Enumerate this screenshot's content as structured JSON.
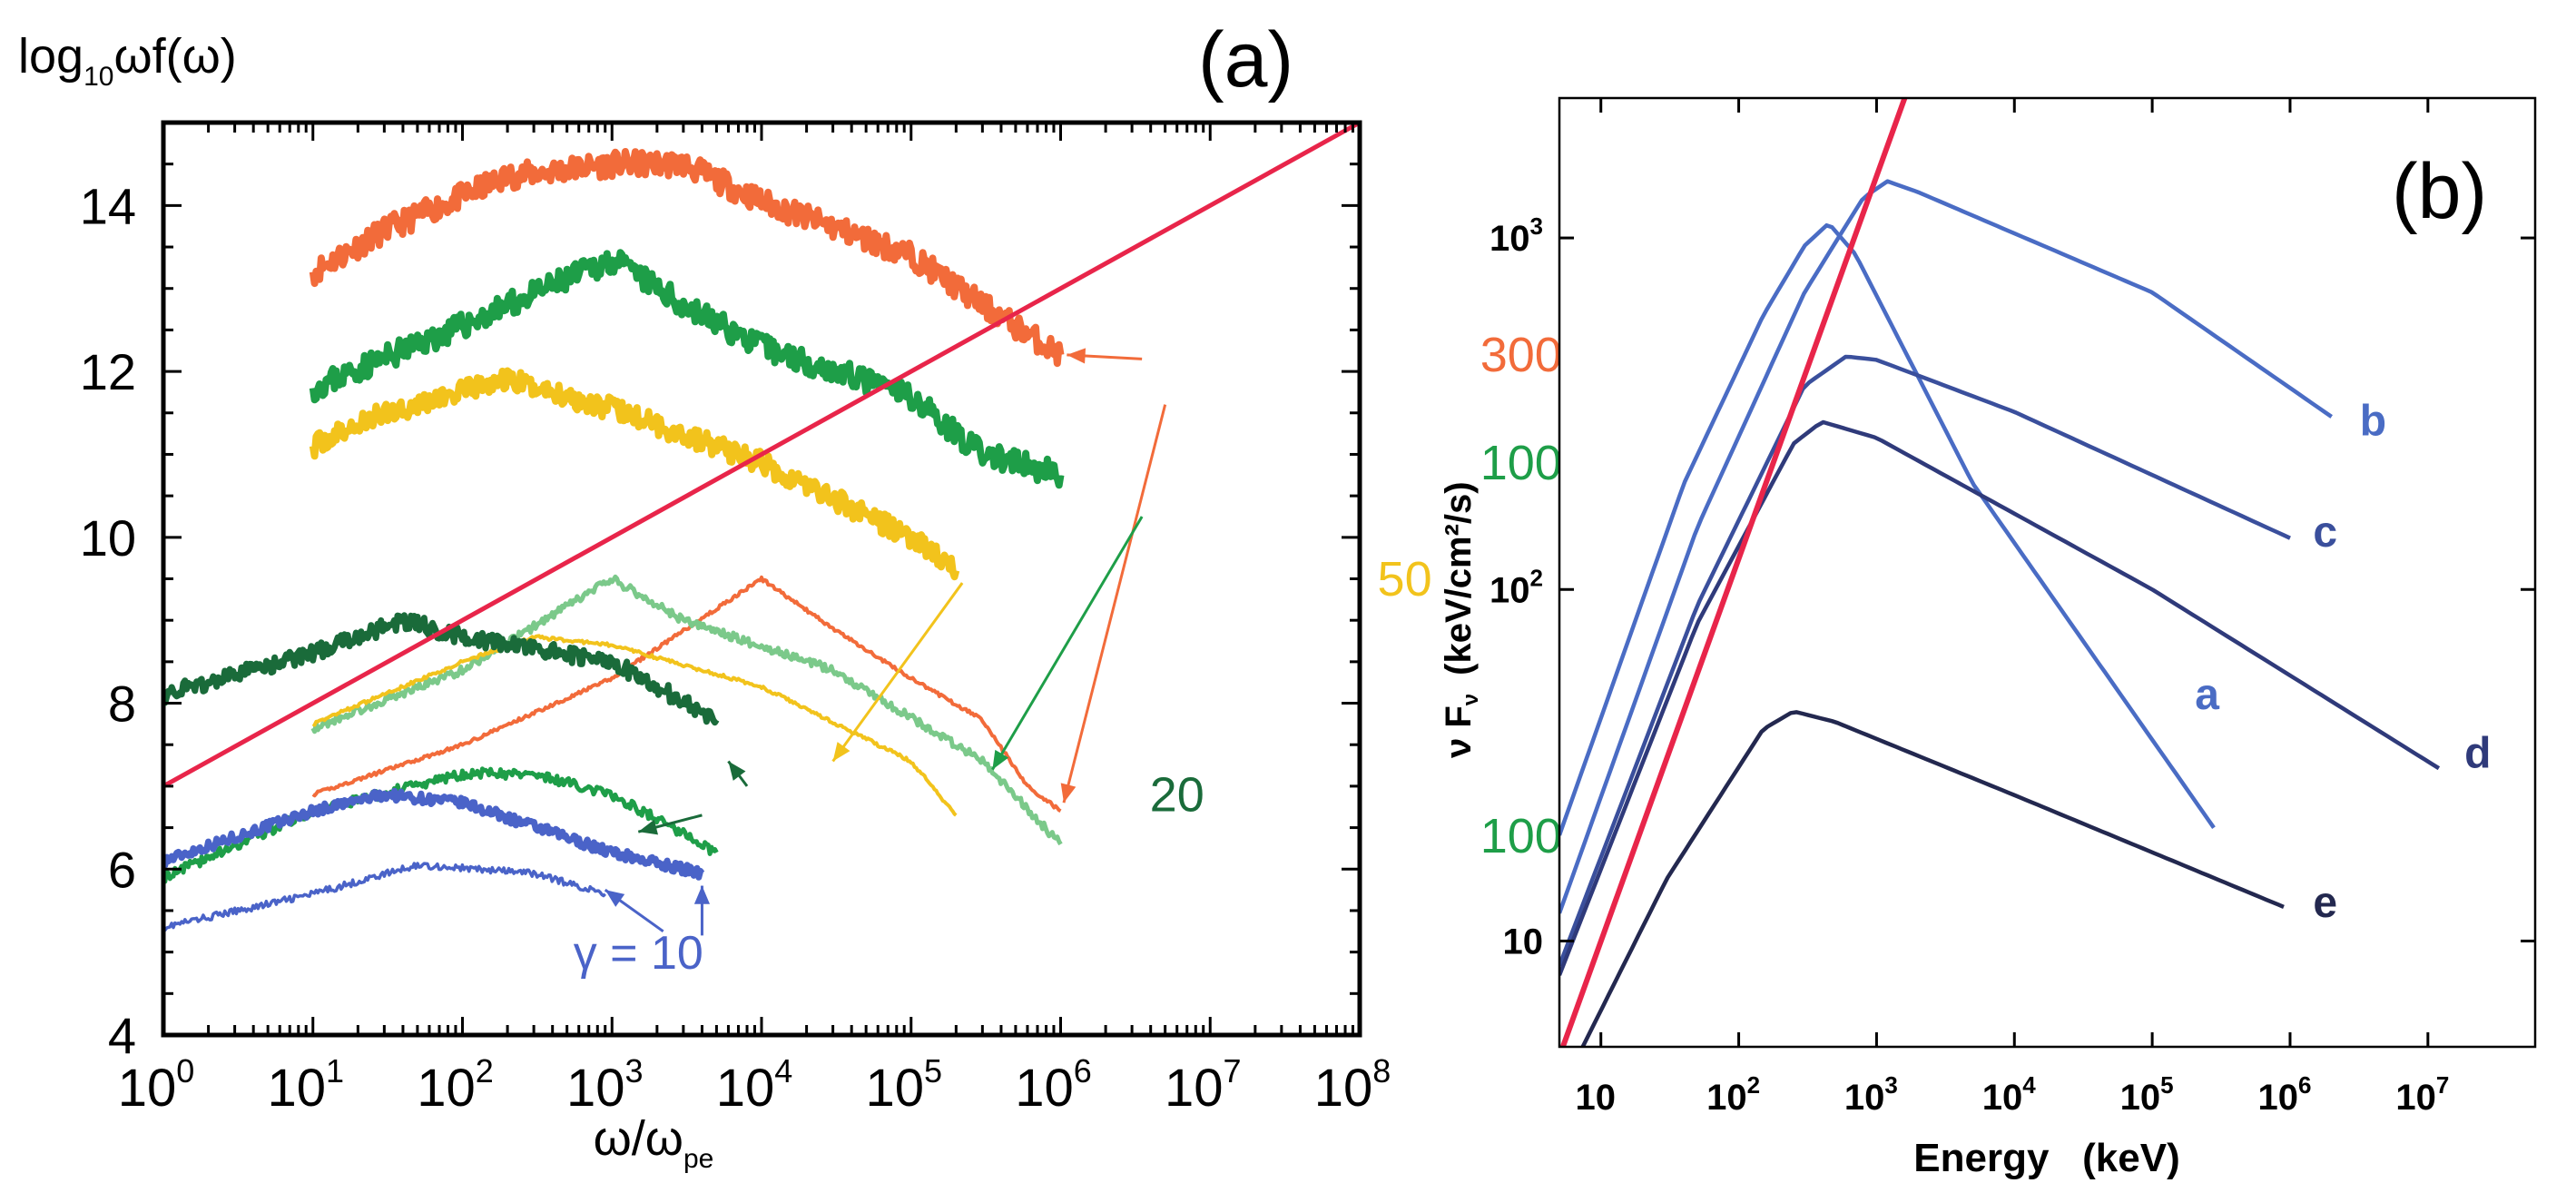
{
  "chart_data": [
    {
      "panel": "(a)",
      "type": "line",
      "ylabel_base": "log",
      "ylabel_sub": "10",
      "ylabel_rest": "ωf(ω)",
      "xlabel_base": "ω/ω",
      "xlabel_sub": "pe",
      "xscale": "log",
      "xlim": [
        1,
        100000000
      ],
      "ylim": [
        4,
        15
      ],
      "x_ticks": [
        {
          "base": "10",
          "exp": "0"
        },
        {
          "base": "10",
          "exp": "1"
        },
        {
          "base": "10",
          "exp": "2"
        },
        {
          "base": "10",
          "exp": "3"
        },
        {
          "base": "10",
          "exp": "4"
        },
        {
          "base": "10",
          "exp": "5"
        },
        {
          "base": "10",
          "exp": "6"
        },
        {
          "base": "10",
          "exp": "7"
        },
        {
          "base": "10",
          "exp": "8"
        }
      ],
      "y_ticks": [
        "4",
        "6",
        "8",
        "10",
        "12",
        "14"
      ],
      "y_tick_values": [
        4,
        6,
        8,
        10,
        12,
        14
      ],
      "reference_line": {
        "name": "red-reference-line",
        "color": "#e8254a",
        "points": [
          [
            1,
            7.0
          ],
          [
            100000000,
            15.0
          ]
        ]
      },
      "series": [
        {
          "name": "gamma-300-upper",
          "color": "#f26b3a",
          "width": 8,
          "noise": 0.15,
          "seed": 11,
          "points": [
            [
              10,
              13.2
            ],
            [
              30,
              13.7
            ],
            [
              200,
              14.35
            ],
            [
              1000,
              14.5
            ],
            [
              3000,
              14.5
            ],
            [
              10000,
              14.05
            ],
            [
              100000,
              13.4
            ],
            [
              300000,
              12.8
            ],
            [
              1000000,
              12.2
            ]
          ]
        },
        {
          "name": "gamma-100-upper",
          "color": "#1e9e48",
          "width": 8,
          "noise": 0.15,
          "seed": 23,
          "points": [
            [
              10,
              11.8
            ],
            [
              100,
              12.55
            ],
            [
              1000,
              13.35
            ],
            [
              3000,
              12.8
            ],
            [
              10000,
              12.3
            ],
            [
              100000,
              11.7
            ],
            [
              300000,
              11.0
            ],
            [
              1000000,
              10.75
            ]
          ]
        },
        {
          "name": "gamma-50-upper",
          "color": "#f2c31c",
          "width": 8,
          "noise": 0.13,
          "seed": 37,
          "points": [
            [
              10,
              11.1
            ],
            [
              30,
              11.5
            ],
            [
              200,
              11.9
            ],
            [
              1000,
              11.55
            ],
            [
              10000,
              10.9
            ],
            [
              100000,
              10.0
            ],
            [
              200000,
              9.6
            ]
          ]
        },
        {
          "name": "gamma-300-lower",
          "color": "#f26b3a",
          "width": 4,
          "noise": 0.02,
          "seed": 41,
          "points": [
            [
              10,
              6.9
            ],
            [
              100,
              7.5
            ],
            [
              1000,
              8.3
            ],
            [
              10000,
              9.5
            ],
            [
              30000,
              8.9
            ],
            [
              100000,
              8.3
            ],
            [
              300000,
              7.8
            ],
            [
              600000,
              7.0
            ],
            [
              1000000,
              6.7
            ]
          ]
        },
        {
          "name": "gamma-100-lower-light",
          "color": "#7bc98a",
          "width": 5,
          "noise": 0.05,
          "seed": 53,
          "points": [
            [
              10,
              7.7
            ],
            [
              100,
              8.4
            ],
            [
              1000,
              9.5
            ],
            [
              3000,
              9.0
            ],
            [
              30000,
              8.4
            ],
            [
              300000,
              7.3
            ],
            [
              1000000,
              6.3
            ]
          ]
        },
        {
          "name": "gamma-50-lower",
          "color": "#f2c31c",
          "width": 4,
          "noise": 0.02,
          "seed": 67,
          "points": [
            [
              10,
              7.75
            ],
            [
              100,
              8.5
            ],
            [
              300,
              8.8
            ],
            [
              1000,
              8.7
            ],
            [
              10000,
              8.2
            ],
            [
              100000,
              7.3
            ],
            [
              200000,
              6.65
            ]
          ]
        },
        {
          "name": "gamma-20-dark",
          "color": "#1a6b3a",
          "width": 7,
          "noise": 0.1,
          "seed": 71,
          "points": [
            [
              1,
              8.1
            ],
            [
              10,
              8.6
            ],
            [
              40,
              9.0
            ],
            [
              100,
              8.8
            ],
            [
              1000,
              8.5
            ],
            [
              5000,
              7.8
            ]
          ]
        },
        {
          "name": "gamma-20-lower",
          "color": "#1e9e48",
          "width": 5,
          "noise": 0.06,
          "seed": 83,
          "points": [
            [
              1,
              5.9
            ],
            [
              10,
              6.7
            ],
            [
              100,
              7.15
            ],
            [
              300,
              7.15
            ],
            [
              1000,
              6.9
            ],
            [
              5000,
              6.2
            ]
          ]
        },
        {
          "name": "gamma-10-thick",
          "color": "#4a63c8",
          "width": 7,
          "noise": 0.06,
          "seed": 97,
          "points": [
            [
              1,
              6.1
            ],
            [
              10,
              6.7
            ],
            [
              30,
              6.9
            ],
            [
              100,
              6.8
            ],
            [
              1000,
              6.2
            ],
            [
              4000,
              5.95
            ]
          ]
        },
        {
          "name": "gamma-10-thin",
          "color": "#4a63c8",
          "width": 3.5,
          "noise": 0.04,
          "seed": 101,
          "points": [
            [
              1,
              5.3
            ],
            [
              10,
              5.7
            ],
            [
              50,
              6.05
            ],
            [
              300,
              5.95
            ],
            [
              900,
              5.7
            ]
          ]
        }
      ],
      "annotations": [
        {
          "text": "300",
          "color": "#f26b3a",
          "label_xy": [
            1200000000,
            12.0
          ],
          "arrows": [
            [
              [
                3500000,
                12.15
              ],
              [
                1100000,
                12.2
              ]
            ],
            [
              [
                5000000,
                11.6
              ],
              [
                1050000,
                6.8
              ]
            ]
          ]
        },
        {
          "text": "100",
          "color": "#1e9e48",
          "label_xy": [
            1200000000,
            10.7
          ],
          "arrows": [
            [
              [
                3500000,
                10.25
              ],
              [
                350000,
                7.2
              ]
            ]
          ]
        },
        {
          "text": "100",
          "color": "#1e9e48",
          "label_xy": [
            1200000000,
            6.2
          ],
          "arrows": []
        },
        {
          "text": "50",
          "color": "#f2c31c",
          "label_xy": [
            200000000,
            9.3
          ],
          "arrows": [
            [
              [
                220000,
                9.45
              ],
              [
                30000,
                7.3
              ]
            ]
          ]
        },
        {
          "text": "20",
          "color": "#1a6b3a",
          "label_xy": [
            6000000,
            6.7
          ],
          "arrows": [
            [
              [
                8000,
                7.0
              ],
              [
                6000,
                7.3
              ]
            ],
            [
              [
                4000,
                6.65
              ],
              [
                1500,
                6.45
              ]
            ]
          ]
        }
      ],
      "gamma_label": "γ = 10",
      "gamma_color": "#4a63c8",
      "gamma_label_xy": [
        1500,
        4.8
      ],
      "gamma_arrows": [
        [
          [
            2200,
            5.25
          ],
          [
            900,
            5.75
          ]
        ],
        [
          [
            4000,
            5.2
          ],
          [
            4000,
            5.8
          ]
        ]
      ]
    },
    {
      "panel": "(b)",
      "type": "line",
      "xlabel": "Energy   (keV)",
      "ylabel_nu": "ν F",
      "ylabel_sub": "ν",
      "ylabel_units": "(keV/cm²/s)",
      "xscale": "log",
      "yscale": "log",
      "xlim": [
        5,
        60000000
      ],
      "ylim": [
        5,
        2500
      ],
      "x_ticks": [
        {
          "base": "10",
          "exp": ""
        },
        {
          "base": "10",
          "exp": "2"
        },
        {
          "base": "10",
          "exp": "3"
        },
        {
          "base": "10",
          "exp": "4"
        },
        {
          "base": "10",
          "exp": "5"
        },
        {
          "base": "10",
          "exp": "6"
        },
        {
          "base": "10",
          "exp": "7"
        }
      ],
      "x_tick_values": [
        10,
        100,
        1000,
        10000,
        100000,
        1000000,
        10000000
      ],
      "y_ticks": [
        {
          "base": "10",
          "exp": ""
        },
        {
          "base": "10",
          "exp": "2"
        },
        {
          "base": "10",
          "exp": "3"
        }
      ],
      "y_tick_values": [
        10,
        100,
        1000
      ],
      "reference_line": {
        "name": "red-reference-line",
        "color": "#e8254a",
        "points": [
          [
            5.3,
            5.0
          ],
          [
            1600,
            2500
          ]
        ]
      },
      "series": [
        {
          "name": "a",
          "label": "a",
          "color": "#4a6cc4",
          "label_xy": [
            250000,
            50
          ],
          "points": [
            [
              5,
              20
            ],
            [
              40,
              200
            ],
            [
              150,
              600
            ],
            [
              300,
              950
            ],
            [
              450,
              1100
            ],
            [
              700,
              900
            ],
            [
              5000,
              200
            ],
            [
              280000,
              21
            ]
          ]
        },
        {
          "name": "b",
          "label": "b",
          "color": "#4a6cc4",
          "label_xy": [
            4000000,
            300
          ],
          "points": [
            [
              5,
              12
            ],
            [
              50,
              150
            ],
            [
              300,
              700
            ],
            [
              800,
              1300
            ],
            [
              1200,
              1450
            ],
            [
              2000,
              1350
            ],
            [
              100000,
              700
            ],
            [
              2000000,
              310
            ]
          ]
        },
        {
          "name": "c",
          "label": "c",
          "color": "#3a4f9c",
          "label_xy": [
            1800000,
            145
          ],
          "points": [
            [
              5,
              8.5
            ],
            [
              50,
              90
            ],
            [
              300,
              380
            ],
            [
              600,
              460
            ],
            [
              1000,
              450
            ],
            [
              10000,
              320
            ],
            [
              1000000,
              140
            ]
          ]
        },
        {
          "name": "d",
          "label": "d",
          "color": "#2f3a7a",
          "label_xy": [
            23000000,
            34
          ],
          "points": [
            [
              5,
              8
            ],
            [
              50,
              80
            ],
            [
              250,
              260
            ],
            [
              400,
              300
            ],
            [
              1000,
              270
            ],
            [
              100000,
              100
            ],
            [
              12000000,
              31
            ]
          ]
        },
        {
          "name": "e",
          "label": "e",
          "color": "#23284f",
          "label_xy": [
            1800000,
            12.8
          ],
          "points": [
            [
              7,
              4.8
            ],
            [
              30,
              15
            ],
            [
              150,
              40
            ],
            [
              250,
              45
            ],
            [
              500,
              42
            ],
            [
              10000,
              26
            ],
            [
              900000,
              12.5
            ]
          ]
        }
      ]
    }
  ]
}
